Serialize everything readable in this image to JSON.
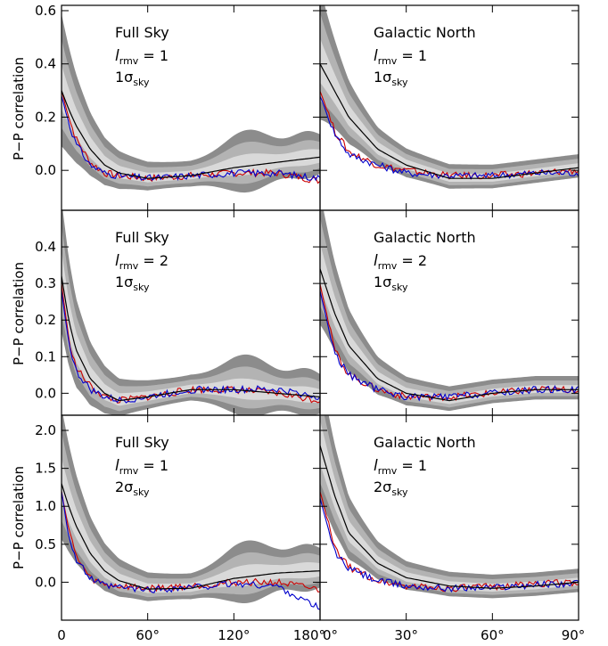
{
  "figure": {
    "ylabel": "P−P correlation",
    "rows": [
      {
        "yticks": [
          "0.0",
          "0.2",
          "0.4",
          "0.6"
        ],
        "ytick_values": [
          0.0,
          0.2,
          0.4,
          0.6
        ]
      },
      {
        "yticks": [
          "0.0",
          "0.1",
          "0.2",
          "0.3",
          "0.4"
        ],
        "ytick_values": [
          0.0,
          0.1,
          0.2,
          0.3,
          0.4
        ]
      },
      {
        "yticks": [
          "0.0",
          "0.5",
          "1.0",
          "1.5",
          "2.0"
        ],
        "ytick_values": [
          0.0,
          0.5,
          1.0,
          1.5,
          2.0
        ]
      }
    ],
    "xticks_left": [
      "0",
      "60°",
      "120°",
      "180°"
    ],
    "xticks_right": [
      "0°",
      "30°",
      "60°",
      "90°"
    ]
  },
  "colors": {
    "band_outer": "#8c8c8c",
    "band_mid": "#b3b3b3",
    "band_inner": "#d9d9d9",
    "model": "#000000",
    "series_red": "#cc0000",
    "series_blue": "#0000cc"
  },
  "chart_data": [
    {
      "type": "line",
      "panel": "row1-left",
      "region": "Full Sky",
      "lrmv": "1",
      "sigma": "1",
      "ylim": [
        -0.15,
        0.62
      ],
      "xlim": [
        0,
        180
      ],
      "x": [
        0,
        5,
        10,
        20,
        30,
        40,
        60,
        90,
        120,
        150,
        180
      ],
      "series": [
        {
          "name": "red",
          "values": [
            0.3,
            0.2,
            0.12,
            0.03,
            -0.01,
            -0.02,
            -0.03,
            -0.02,
            -0.01,
            -0.01,
            -0.04
          ]
        },
        {
          "name": "blue",
          "values": [
            0.28,
            0.18,
            0.1,
            0.02,
            -0.01,
            -0.02,
            -0.03,
            -0.02,
            -0.01,
            -0.01,
            -0.03
          ]
        },
        {
          "name": "black",
          "values": [
            0.3,
            0.23,
            0.17,
            0.08,
            0.02,
            -0.01,
            -0.03,
            -0.02,
            0.01,
            0.03,
            0.05
          ]
        }
      ]
    },
    {
      "type": "line",
      "panel": "row1-right",
      "region": "Galactic North",
      "lrmv": "1",
      "sigma": "1",
      "ylim": [
        -0.15,
        0.62
      ],
      "xlim": [
        0,
        90
      ],
      "x": [
        0,
        5,
        10,
        20,
        30,
        45,
        60,
        75,
        90
      ],
      "series": [
        {
          "name": "red",
          "values": [
            0.3,
            0.15,
            0.07,
            0.02,
            0.0,
            -0.02,
            -0.02,
            -0.01,
            0.0
          ]
        },
        {
          "name": "blue",
          "values": [
            0.28,
            0.14,
            0.06,
            0.02,
            -0.01,
            -0.02,
            -0.02,
            -0.01,
            -0.01
          ]
        },
        {
          "name": "black",
          "values": [
            0.4,
            0.3,
            0.2,
            0.08,
            0.02,
            -0.03,
            -0.03,
            -0.01,
            0.01
          ]
        }
      ]
    },
    {
      "type": "line",
      "panel": "row2-left",
      "region": "Full Sky",
      "lrmv": "2",
      "sigma": "1",
      "ylim": [
        -0.06,
        0.5
      ],
      "xlim": [
        0,
        180
      ],
      "x": [
        0,
        5,
        10,
        20,
        30,
        40,
        60,
        90,
        120,
        150,
        180
      ],
      "series": [
        {
          "name": "red",
          "values": [
            0.3,
            0.15,
            0.07,
            0.02,
            -0.01,
            -0.02,
            -0.01,
            0.01,
            0.01,
            0.0,
            -0.02
          ]
        },
        {
          "name": "blue",
          "values": [
            0.28,
            0.14,
            0.06,
            0.01,
            -0.01,
            -0.02,
            -0.01,
            0.01,
            0.01,
            0.01,
            -0.01
          ]
        },
        {
          "name": "black",
          "values": [
            0.32,
            0.2,
            0.12,
            0.04,
            0.0,
            -0.02,
            -0.01,
            0.01,
            0.01,
            0.0,
            -0.01
          ]
        }
      ]
    },
    {
      "type": "line",
      "panel": "row2-right",
      "region": "Galactic North",
      "lrmv": "2",
      "sigma": "1",
      "ylim": [
        -0.06,
        0.5
      ],
      "xlim": [
        0,
        90
      ],
      "x": [
        0,
        5,
        10,
        20,
        30,
        45,
        60,
        75,
        90
      ],
      "series": [
        {
          "name": "red",
          "values": [
            0.3,
            0.12,
            0.05,
            0.01,
            -0.01,
            -0.01,
            0.0,
            0.01,
            0.01
          ]
        },
        {
          "name": "blue",
          "values": [
            0.28,
            0.11,
            0.05,
            0.01,
            -0.01,
            -0.01,
            0.0,
            0.01,
            0.01
          ]
        },
        {
          "name": "black",
          "values": [
            0.34,
            0.22,
            0.13,
            0.04,
            0.0,
            -0.02,
            0.0,
            0.01,
            0.01
          ]
        }
      ]
    },
    {
      "type": "line",
      "panel": "row3-left",
      "region": "Full Sky",
      "lrmv": "1",
      "sigma": "2",
      "ylim": [
        -0.5,
        2.2
      ],
      "xlim": [
        0,
        180
      ],
      "x": [
        0,
        5,
        10,
        20,
        30,
        40,
        60,
        90,
        120,
        150,
        180
      ],
      "series": [
        {
          "name": "red",
          "values": [
            1.2,
            0.7,
            0.35,
            0.05,
            -0.03,
            -0.05,
            -0.08,
            -0.05,
            0.0,
            0.0,
            -0.1
          ]
        },
        {
          "name": "blue",
          "values": [
            1.2,
            0.6,
            0.3,
            0.05,
            -0.05,
            -0.07,
            -0.1,
            -0.07,
            -0.02,
            -0.05,
            -0.35
          ]
        },
        {
          "name": "black",
          "values": [
            1.3,
            1.0,
            0.75,
            0.38,
            0.15,
            0.02,
            -0.09,
            -0.08,
            0.05,
            0.12,
            0.15
          ]
        }
      ]
    },
    {
      "type": "line",
      "panel": "row3-right",
      "region": "Galactic North",
      "lrmv": "1",
      "sigma": "2",
      "ylim": [
        -0.5,
        2.2
      ],
      "xlim": [
        0,
        90
      ],
      "x": [
        0,
        5,
        10,
        20,
        30,
        45,
        60,
        75,
        90
      ],
      "series": [
        {
          "name": "red",
          "values": [
            1.2,
            0.45,
            0.2,
            0.02,
            -0.05,
            -0.08,
            -0.06,
            -0.02,
            0.0
          ]
        },
        {
          "name": "blue",
          "values": [
            1.1,
            0.4,
            0.18,
            0.02,
            -0.05,
            -0.08,
            -0.07,
            -0.03,
            -0.02
          ]
        },
        {
          "name": "black",
          "values": [
            1.8,
            1.15,
            0.65,
            0.25,
            0.06,
            -0.05,
            -0.08,
            -0.05,
            0.0
          ]
        }
      ]
    }
  ]
}
